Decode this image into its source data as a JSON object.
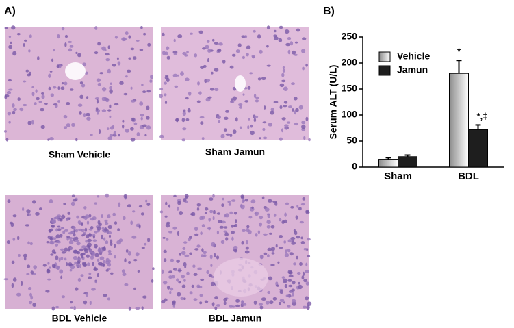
{
  "panel_a": {
    "label": "A)",
    "images": [
      {
        "caption": "Sham Vehicle"
      },
      {
        "caption": "Sham Jamun"
      },
      {
        "caption": "BDL Vehicle"
      },
      {
        "caption": "BDL Jamun"
      }
    ]
  },
  "chart_data": {
    "type": "bar",
    "panel_label": "B)",
    "ylabel": "Serum ALT (U/L)",
    "categories": [
      "Sham",
      "BDL"
    ],
    "series": [
      {
        "name": "Vehicle",
        "color": "#8c8c8c",
        "values": [
          15,
          180
        ],
        "errors": [
          3,
          25
        ],
        "labels": [
          null,
          "*"
        ]
      },
      {
        "name": "Jamun",
        "color": "#1e1e1e",
        "values": [
          20,
          72
        ],
        "errors": [
          3,
          9
        ],
        "labels": [
          null,
          "*,‡"
        ]
      }
    ],
    "ylim": [
      0,
      250
    ],
    "yticks": [
      0,
      50,
      100,
      150,
      200,
      250
    ],
    "legend": "upper left"
  }
}
